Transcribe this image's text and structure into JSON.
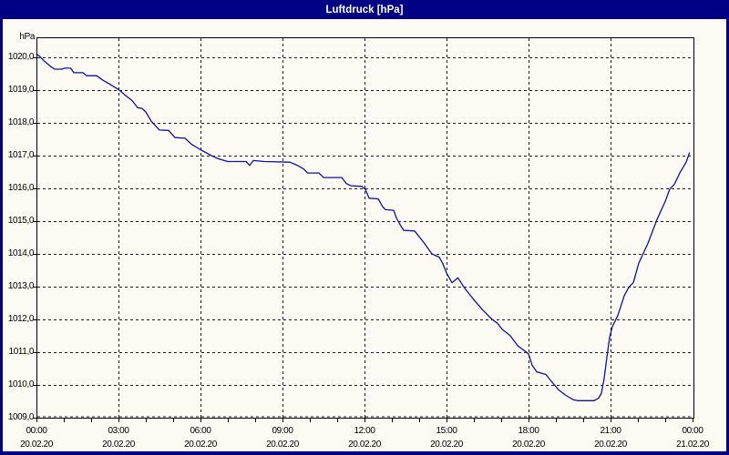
{
  "window": {
    "title": "Luftdruck [hPa]"
  },
  "colors": {
    "title_bar_bg": "#000084",
    "window_border": "#000084",
    "title_text": "#ffffff",
    "content_bg": "#fbfbf3",
    "grid_line": "#1c1c1c",
    "axis_line": "#000000",
    "series_line": "#0f0faa",
    "label_text": "#000000"
  },
  "chart_data": {
    "type": "line",
    "title": "Luftdruck [hPa]",
    "legend": "none",
    "grid": "dashed",
    "y_axis": {
      "unit": "hPa",
      "min": 1009,
      "max": 1020,
      "tick_step": 1,
      "tick_labels": [
        "1020,0",
        "1019,0",
        "1018,0",
        "1017,0",
        "1016,0",
        "1015,0",
        "1014,0",
        "1013,0",
        "1012,0",
        "1011,0",
        "1010,0",
        "1009,0"
      ]
    },
    "x_axis": {
      "span_hours": 24,
      "major_tick_hours": 3,
      "minor_tick_hours": 1,
      "tick_labels": [
        {
          "time": "00:00",
          "date": "20.02.20"
        },
        {
          "time": "03:00",
          "date": "20.02.20"
        },
        {
          "time": "06:00",
          "date": "20.02.20"
        },
        {
          "time": "09:00",
          "date": "20.02.20"
        },
        {
          "time": "12:00",
          "date": "20.02.20"
        },
        {
          "time": "15:00",
          "date": "20.02.20"
        },
        {
          "time": "18:00",
          "date": "20.02.20"
        },
        {
          "time": "21:00",
          "date": "20.02.20"
        },
        {
          "time": "00:00",
          "date": "21.02.20"
        }
      ]
    },
    "series": [
      {
        "name": "Luftdruck",
        "unit": "hPa",
        "color": "#0f0faa",
        "points_min_hpa": [
          [
            0,
            1020.1
          ],
          [
            8,
            1020.02
          ],
          [
            16,
            1019.9
          ],
          [
            32,
            1019.71
          ],
          [
            40,
            1019.64
          ],
          [
            56,
            1019.64
          ],
          [
            62,
            1019.67
          ],
          [
            75,
            1019.67
          ],
          [
            82,
            1019.53
          ],
          [
            102,
            1019.53
          ],
          [
            110,
            1019.44
          ],
          [
            132,
            1019.44
          ],
          [
            146,
            1019.3
          ],
          [
            160,
            1019.19
          ],
          [
            180,
            1019.02
          ],
          [
            196,
            1018.83
          ],
          [
            210,
            1018.68
          ],
          [
            222,
            1018.46
          ],
          [
            232,
            1018.44
          ],
          [
            240,
            1018.33
          ],
          [
            252,
            1018.05
          ],
          [
            262,
            1017.9
          ],
          [
            270,
            1017.78
          ],
          [
            290,
            1017.77
          ],
          [
            304,
            1017.55
          ],
          [
            326,
            1017.53
          ],
          [
            340,
            1017.35
          ],
          [
            360,
            1017.18
          ],
          [
            384,
            1017.0
          ],
          [
            400,
            1016.9
          ],
          [
            420,
            1016.82
          ],
          [
            460,
            1016.82
          ],
          [
            468,
            1016.7
          ],
          [
            476,
            1016.85
          ],
          [
            500,
            1016.82
          ],
          [
            556,
            1016.8
          ],
          [
            570,
            1016.72
          ],
          [
            586,
            1016.6
          ],
          [
            595,
            1016.47
          ],
          [
            620,
            1016.47
          ],
          [
            630,
            1016.33
          ],
          [
            670,
            1016.33
          ],
          [
            680,
            1016.15
          ],
          [
            690,
            1016.08
          ],
          [
            714,
            1016.06
          ],
          [
            722,
            1015.97
          ],
          [
            730,
            1015.7
          ],
          [
            750,
            1015.68
          ],
          [
            760,
            1015.44
          ],
          [
            766,
            1015.35
          ],
          [
            784,
            1015.33
          ],
          [
            790,
            1015.1
          ],
          [
            800,
            1014.85
          ],
          [
            806,
            1014.72
          ],
          [
            830,
            1014.7
          ],
          [
            850,
            1014.35
          ],
          [
            868,
            1014.0
          ],
          [
            884,
            1013.9
          ],
          [
            892,
            1013.7
          ],
          [
            900,
            1013.42
          ],
          [
            912,
            1013.12
          ],
          [
            925,
            1013.27
          ],
          [
            940,
            1012.95
          ],
          [
            960,
            1012.6
          ],
          [
            980,
            1012.28
          ],
          [
            1000,
            1012.0
          ],
          [
            1012,
            1011.88
          ],
          [
            1022,
            1011.7
          ],
          [
            1040,
            1011.5
          ],
          [
            1056,
            1011.2
          ],
          [
            1080,
            1010.95
          ],
          [
            1088,
            1010.6
          ],
          [
            1098,
            1010.4
          ],
          [
            1118,
            1010.32
          ],
          [
            1132,
            1010.08
          ],
          [
            1146,
            1009.85
          ],
          [
            1162,
            1009.68
          ],
          [
            1178,
            1009.55
          ],
          [
            1188,
            1009.52
          ],
          [
            1224,
            1009.52
          ],
          [
            1234,
            1009.6
          ],
          [
            1240,
            1009.75
          ],
          [
            1246,
            1010.2
          ],
          [
            1252,
            1010.85
          ],
          [
            1258,
            1011.45
          ],
          [
            1264,
            1011.78
          ],
          [
            1276,
            1012.12
          ],
          [
            1290,
            1012.72
          ],
          [
            1300,
            1012.98
          ],
          [
            1310,
            1013.12
          ],
          [
            1322,
            1013.72
          ],
          [
            1342,
            1014.32
          ],
          [
            1362,
            1015.05
          ],
          [
            1380,
            1015.6
          ],
          [
            1390,
            1015.98
          ],
          [
            1400,
            1016.12
          ],
          [
            1412,
            1016.47
          ],
          [
            1426,
            1016.8
          ],
          [
            1433,
            1017.08
          ]
        ]
      }
    ]
  }
}
